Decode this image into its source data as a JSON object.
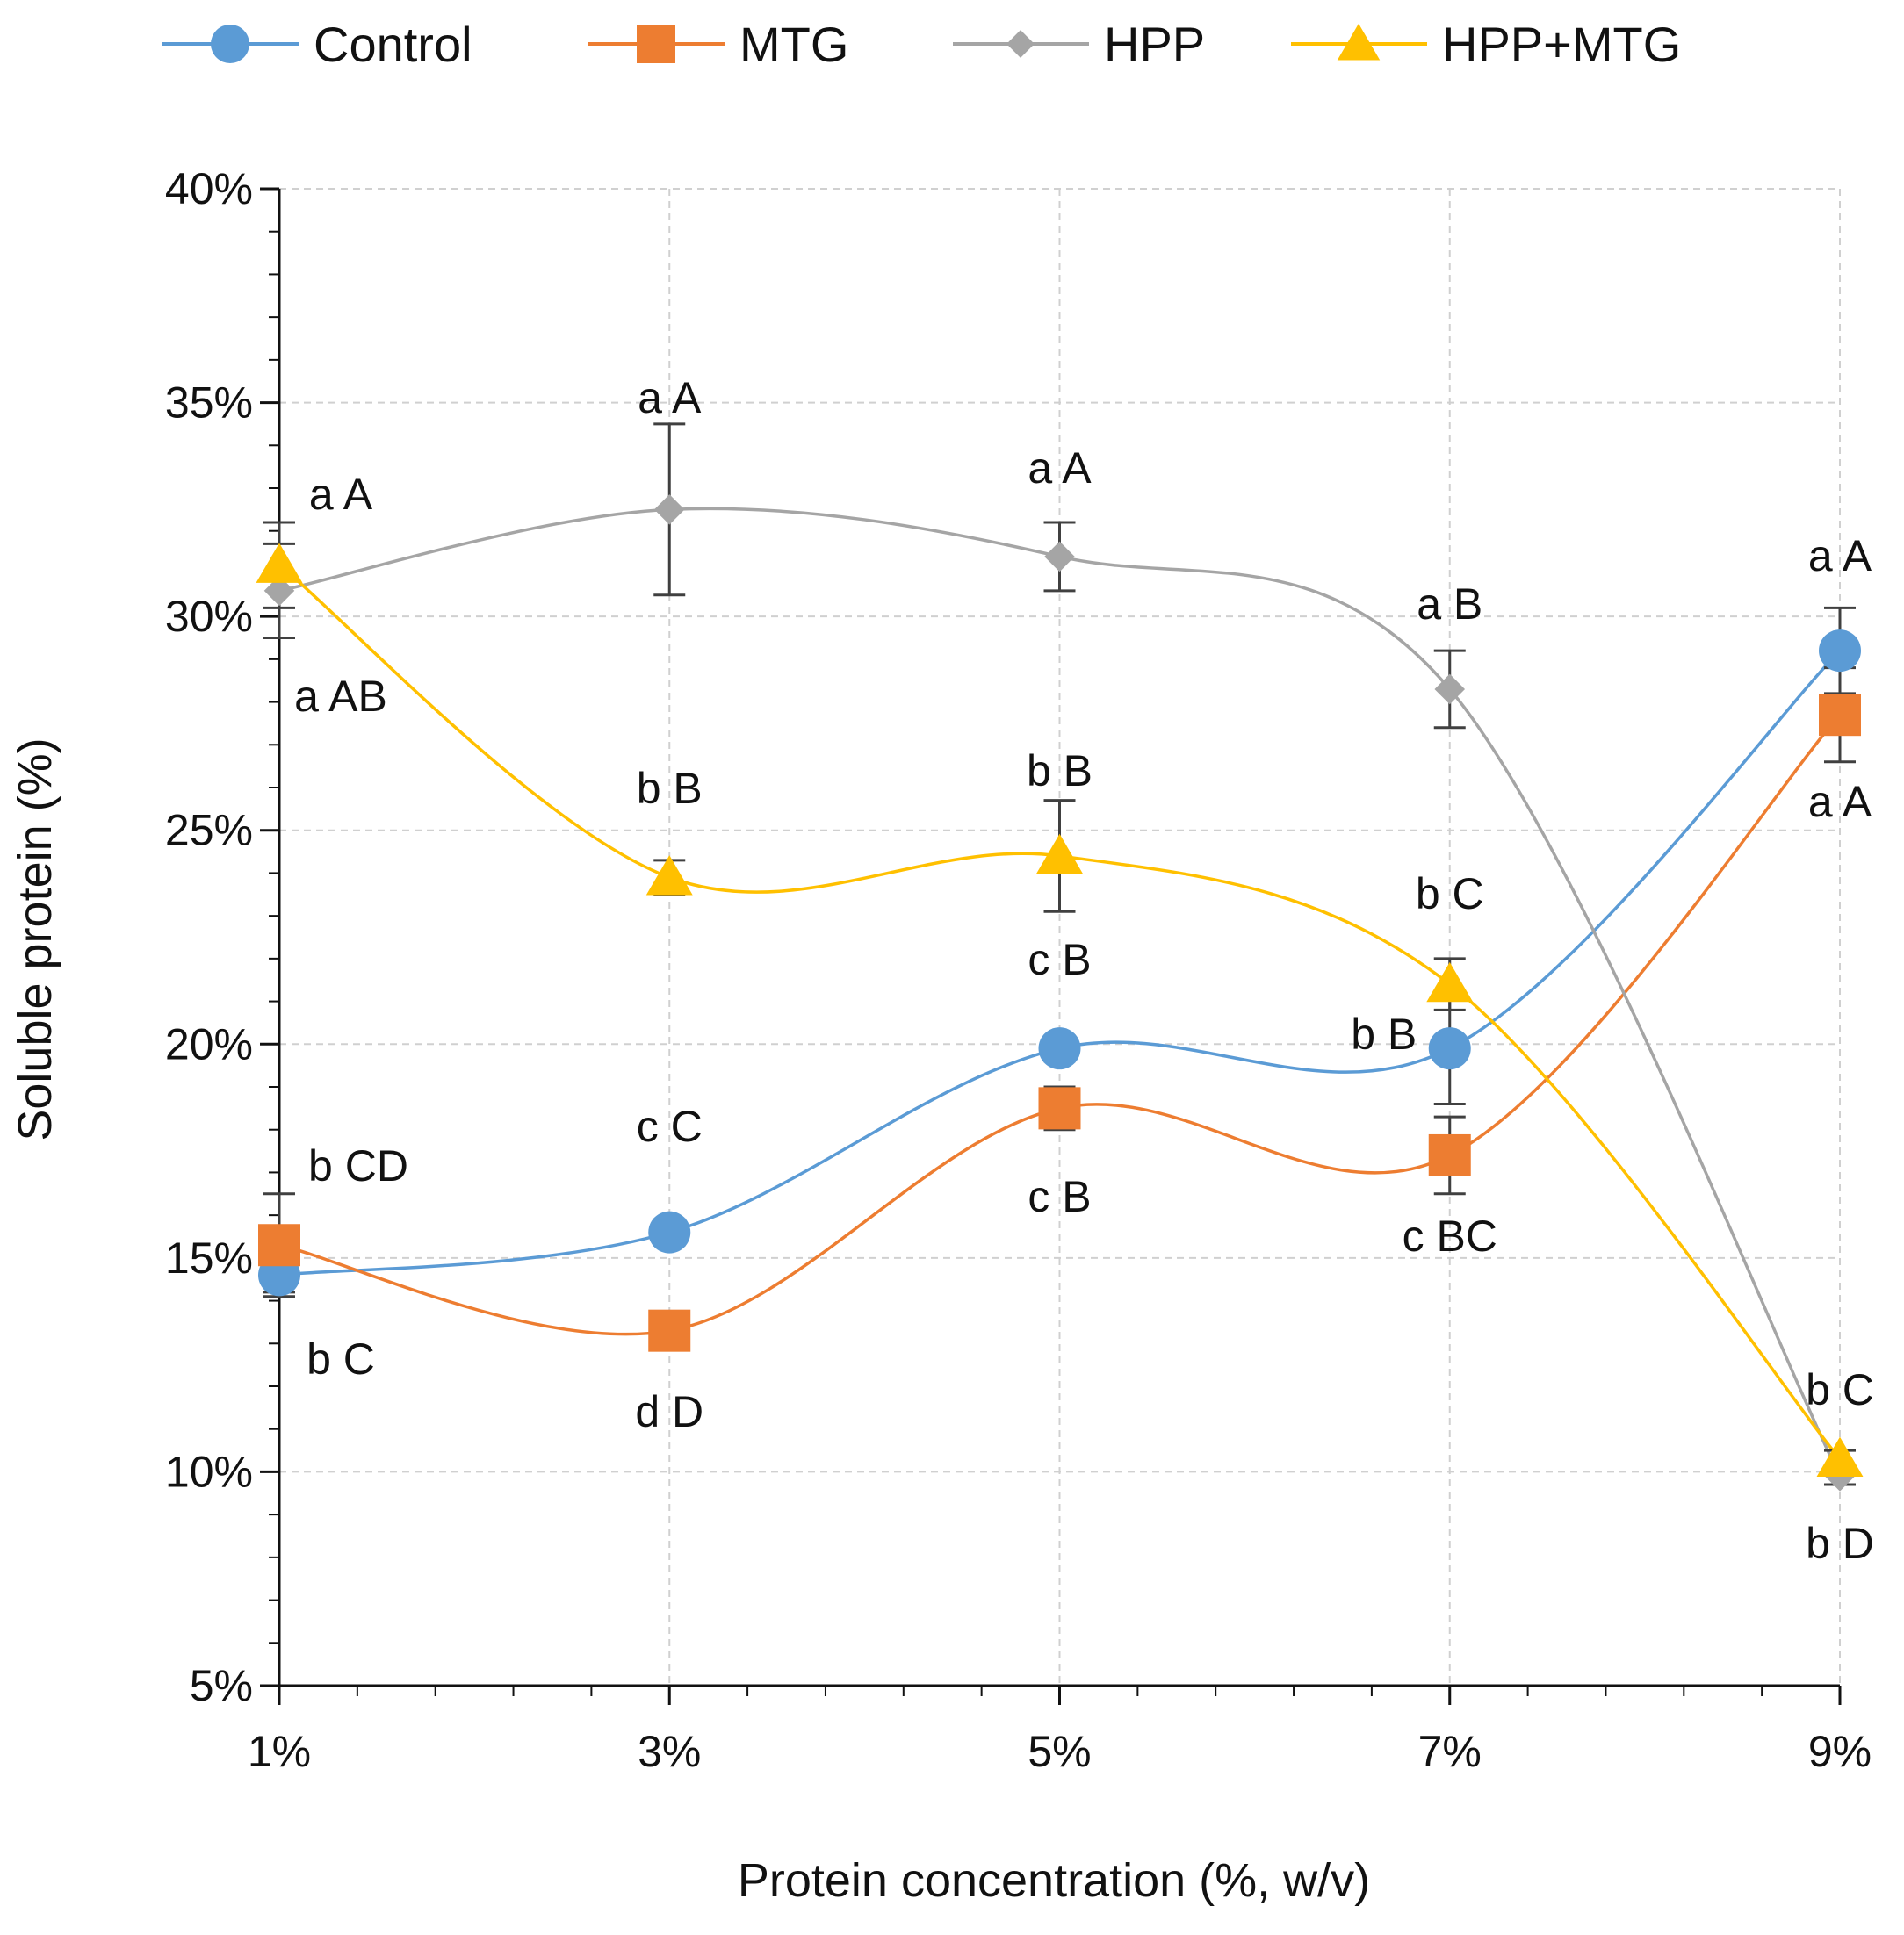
{
  "chart_data": {
    "type": "line",
    "title": "",
    "xlabel": "Protein concentration (%, w/v)",
    "ylabel": "Soluble protein (%)",
    "x": [
      1,
      3,
      5,
      7,
      9
    ],
    "x_tick_labels": [
      "1%",
      "3%",
      "5%",
      "7%",
      "9%"
    ],
    "xlim": [
      1,
      9
    ],
    "ylim": [
      5,
      40
    ],
    "y_ticks": [
      5,
      10,
      15,
      20,
      25,
      30,
      35,
      40
    ],
    "y_tick_labels": [
      "5%",
      "10%",
      "15%",
      "20%",
      "25%",
      "30%",
      "35%",
      "40%"
    ],
    "grid": true,
    "legend_position": "top",
    "series": [
      {
        "name": "Control",
        "color": "#5b9bd5",
        "marker": "circle",
        "values": [
          14.6,
          15.6,
          19.9,
          19.9,
          29.2
        ],
        "errors": [
          0.4,
          0.3,
          0.3,
          1.3,
          1.0
        ],
        "labels": [
          "b C",
          "c C",
          "c B",
          "b B",
          "a A"
        ]
      },
      {
        "name": "MTG",
        "color": "#ed7d31",
        "marker": "square",
        "values": [
          15.3,
          13.3,
          18.5,
          17.4,
          27.7
        ],
        "errors": [
          1.2,
          0.2,
          0.5,
          0.9,
          1.1
        ],
        "labels": [
          "b CD",
          "d D",
          "c B",
          "c BC",
          "a A"
        ]
      },
      {
        "name": "HPP",
        "color": "#a5a5a5",
        "marker": "diamond",
        "values": [
          30.6,
          32.5,
          31.4,
          28.3,
          9.9
        ],
        "errors": [
          1.1,
          2.0,
          0.8,
          0.9,
          0.2
        ],
        "labels": [
          "a AB",
          "a A",
          "a A",
          "a B",
          "b D"
        ]
      },
      {
        "name": "HPP+MTG",
        "color": "#ffc000",
        "marker": "triangle",
        "values": [
          31.2,
          23.9,
          24.4,
          21.4,
          10.3
        ],
        "errors": [
          1.0,
          0.4,
          1.3,
          0.6,
          0.2
        ],
        "labels": [
          "a A",
          "b B",
          "b B",
          "b C",
          "b C"
        ]
      }
    ]
  }
}
